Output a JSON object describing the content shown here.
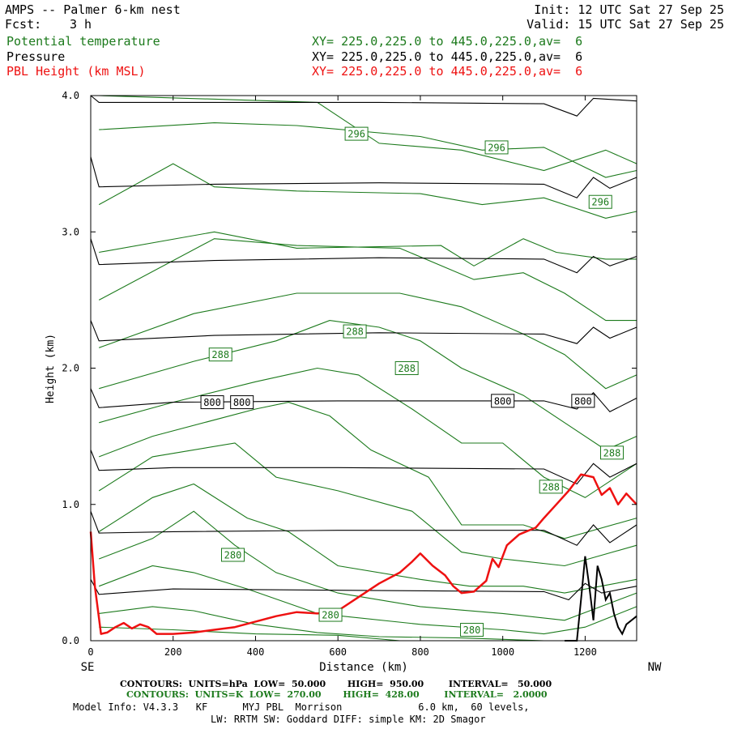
{
  "header": {
    "title": "AMPS -- Palmer 6-km nest",
    "fcst_label": "Fcst:",
    "fcst_value": "3 h",
    "init": "Init: 12 UTC Sat 27 Sep 25",
    "valid": "Valid: 15 UTC Sat 27 Sep 25"
  },
  "legend": [
    {
      "name": "Potential temperature",
      "xy": "XY= 225.0,225.0 to 445.0,225.0,av=  6",
      "color": "#1c7a1c"
    },
    {
      "name": "Pressure",
      "xy": "XY= 225.0,225.0 to 445.0,225.0,av=  6",
      "color": "#000000"
    },
    {
      "name": "PBL Height (km MSL)",
      "xy": "XY= 225.0,225.0 to 445.0,225.0,av=  6",
      "color": "#ee1111"
    }
  ],
  "footer": {
    "pressure_contours": "CONTOURS:  UNITS=hPa  LOW=  50.000       HIGH=  950.00        INTERVAL=   50.000",
    "theta_contours": "CONTOURS:  UNITS=K  LOW=  270.00       HIGH=  428.00        INTERVAL=   2.0000",
    "model_info": "Model Info: V4.3.3   KF      MYJ PBL  Morrison             6.0 km,  60 levels,",
    "model_info2": "LW: RRTM SW: Goddard DIFF: simple KM: 2D Smagor"
  },
  "chart_data": {
    "type": "line",
    "title": "AMPS -- Palmer 6-km nest",
    "xlabel": "Distance (km)",
    "ylabel": "Height (km)",
    "xlim": [
      0,
      1325
    ],
    "ylim": [
      0,
      4.0
    ],
    "x_ticks": [
      0,
      200,
      400,
      600,
      800,
      1000,
      1200
    ],
    "x_tick_labels": [
      "0",
      "200",
      "400",
      "600",
      "800",
      "1000",
      "1200"
    ],
    "y_ticks": [
      0,
      1,
      2,
      3,
      4
    ],
    "y_tick_labels": [
      "0.0",
      "1.0",
      "2.0",
      "3.0",
      "4.0"
    ],
    "x_end_labels": {
      "left": "SE",
      "right": "NW"
    },
    "pressure_isobars_hPa": [
      {
        "level": 950,
        "points": [
          [
            0,
            0.45
          ],
          [
            20,
            0.34
          ],
          [
            200,
            0.38
          ],
          [
            600,
            0.37
          ],
          [
            1100,
            0.36
          ],
          [
            1160,
            0.3
          ],
          [
            1200,
            0.42
          ],
          [
            1240,
            0.35
          ],
          [
            1325,
            0.4
          ]
        ]
      },
      {
        "level": 900,
        "points": [
          [
            0,
            0.95
          ],
          [
            20,
            0.79
          ],
          [
            200,
            0.8
          ],
          [
            600,
            0.81
          ],
          [
            1100,
            0.81
          ],
          [
            1180,
            0.7
          ],
          [
            1220,
            0.85
          ],
          [
            1260,
            0.72
          ],
          [
            1325,
            0.85
          ]
        ]
      },
      {
        "level": 850,
        "points": [
          [
            0,
            1.4
          ],
          [
            20,
            1.25
          ],
          [
            200,
            1.27
          ],
          [
            600,
            1.27
          ],
          [
            1100,
            1.26
          ],
          [
            1180,
            1.15
          ],
          [
            1220,
            1.3
          ],
          [
            1260,
            1.2
          ],
          [
            1325,
            1.3
          ]
        ]
      },
      {
        "level": 800,
        "points": [
          [
            0,
            1.85
          ],
          [
            20,
            1.71
          ],
          [
            200,
            1.75
          ],
          [
            600,
            1.76
          ],
          [
            1100,
            1.76
          ],
          [
            1180,
            1.7
          ],
          [
            1220,
            1.82
          ],
          [
            1260,
            1.68
          ],
          [
            1325,
            1.78
          ]
        ]
      },
      {
        "level": 750,
        "points": [
          [
            0,
            2.35
          ],
          [
            20,
            2.2
          ],
          [
            300,
            2.24
          ],
          [
            700,
            2.26
          ],
          [
            1100,
            2.25
          ],
          [
            1180,
            2.18
          ],
          [
            1220,
            2.3
          ],
          [
            1260,
            2.22
          ],
          [
            1325,
            2.3
          ]
        ]
      },
      {
        "level": 700,
        "points": [
          [
            0,
            2.95
          ],
          [
            20,
            2.76
          ],
          [
            300,
            2.79
          ],
          [
            700,
            2.81
          ],
          [
            1100,
            2.8
          ],
          [
            1180,
            2.7
          ],
          [
            1220,
            2.82
          ],
          [
            1260,
            2.75
          ],
          [
            1325,
            2.82
          ]
        ]
      },
      {
        "level": 650,
        "points": [
          [
            0,
            3.55
          ],
          [
            20,
            3.33
          ],
          [
            300,
            3.35
          ],
          [
            700,
            3.36
          ],
          [
            1100,
            3.35
          ],
          [
            1180,
            3.25
          ],
          [
            1220,
            3.4
          ],
          [
            1260,
            3.32
          ],
          [
            1325,
            3.4
          ]
        ]
      },
      {
        "level": 600,
        "points": [
          [
            0,
            4.0
          ],
          [
            20,
            3.95
          ],
          [
            300,
            3.95
          ],
          [
            700,
            3.95
          ],
          [
            1100,
            3.94
          ],
          [
            1180,
            3.85
          ],
          [
            1220,
            3.98
          ],
          [
            1325,
            3.96
          ]
        ]
      }
    ],
    "pressure_labels": [
      {
        "text": "800",
        "x": 295,
        "y": 1.75
      },
      {
        "text": "800",
        "x": 367,
        "y": 1.75
      },
      {
        "text": "800",
        "x": 1000,
        "y": 1.76
      },
      {
        "text": "800",
        "x": 1195,
        "y": 1.76
      }
    ],
    "theta_isentropes_K": [
      {
        "points": [
          [
            20,
            0.1
          ],
          [
            200,
            0.08
          ],
          [
            400,
            0.05
          ],
          [
            600,
            0.04
          ],
          [
            750,
            0.0
          ]
        ]
      },
      {
        "points": [
          [
            20,
            0.2
          ],
          [
            150,
            0.25
          ],
          [
            250,
            0.22
          ],
          [
            400,
            0.12
          ],
          [
            550,
            0.06
          ],
          [
            700,
            0.03
          ],
          [
            900,
            0.02
          ],
          [
            1100,
            0.0
          ]
        ]
      },
      {
        "points": [
          [
            20,
            0.4
          ],
          [
            150,
            0.55
          ],
          [
            250,
            0.5
          ],
          [
            380,
            0.38
          ],
          [
            550,
            0.2
          ],
          [
            800,
            0.12
          ],
          [
            1000,
            0.08
          ],
          [
            1100,
            0.05
          ],
          [
            1200,
            0.1
          ],
          [
            1325,
            0.25
          ]
        ]
      },
      {
        "points": [
          [
            20,
            0.6
          ],
          [
            150,
            0.75
          ],
          [
            250,
            0.95
          ],
          [
            350,
            0.7
          ],
          [
            450,
            0.5
          ],
          [
            600,
            0.35
          ],
          [
            800,
            0.25
          ],
          [
            1000,
            0.2
          ],
          [
            1150,
            0.15
          ],
          [
            1325,
            0.35
          ]
        ]
      },
      {
        "points": [
          [
            20,
            0.8
          ],
          [
            150,
            1.05
          ],
          [
            250,
            1.15
          ],
          [
            380,
            0.9
          ],
          [
            480,
            0.8
          ],
          [
            600,
            0.55
          ],
          [
            800,
            0.45
          ],
          [
            920,
            0.4
          ],
          [
            1050,
            0.4
          ],
          [
            1150,
            0.35
          ],
          [
            1325,
            0.45
          ]
        ]
      },
      {
        "points": [
          [
            20,
            1.1
          ],
          [
            150,
            1.35
          ],
          [
            350,
            1.45
          ],
          [
            450,
            1.2
          ],
          [
            600,
            1.1
          ],
          [
            780,
            0.95
          ],
          [
            900,
            0.65
          ],
          [
            1000,
            0.6
          ],
          [
            1150,
            0.55
          ],
          [
            1325,
            0.7
          ]
        ]
      },
      {
        "points": [
          [
            20,
            1.35
          ],
          [
            150,
            1.5
          ],
          [
            400,
            1.7
          ],
          [
            480,
            1.75
          ],
          [
            580,
            1.65
          ],
          [
            680,
            1.4
          ],
          [
            820,
            1.2
          ],
          [
            900,
            0.85
          ],
          [
            1050,
            0.85
          ],
          [
            1150,
            0.75
          ],
          [
            1325,
            0.9
          ]
        ]
      },
      {
        "points": [
          [
            20,
            1.6
          ],
          [
            200,
            1.75
          ],
          [
            400,
            1.9
          ],
          [
            550,
            2.0
          ],
          [
            650,
            1.95
          ],
          [
            780,
            1.7
          ],
          [
            900,
            1.45
          ],
          [
            1000,
            1.45
          ],
          [
            1100,
            1.2
          ],
          [
            1200,
            1.05
          ],
          [
            1325,
            1.3
          ]
        ]
      },
      {
        "points": [
          [
            20,
            1.85
          ],
          [
            250,
            2.05
          ],
          [
            450,
            2.2
          ],
          [
            580,
            2.35
          ],
          [
            700,
            2.3
          ],
          [
            800,
            2.2
          ],
          [
            900,
            2.0
          ],
          [
            1050,
            1.8
          ],
          [
            1150,
            1.6
          ],
          [
            1250,
            1.4
          ],
          [
            1325,
            1.5
          ]
        ]
      },
      {
        "points": [
          [
            20,
            2.15
          ],
          [
            250,
            2.4
          ],
          [
            500,
            2.55
          ],
          [
            750,
            2.55
          ],
          [
            900,
            2.45
          ],
          [
            1050,
            2.25
          ],
          [
            1150,
            2.1
          ],
          [
            1250,
            1.85
          ],
          [
            1325,
            1.95
          ]
        ]
      },
      {
        "points": [
          [
            20,
            2.5
          ],
          [
            300,
            2.95
          ],
          [
            500,
            2.9
          ],
          [
            750,
            2.88
          ],
          [
            930,
            2.65
          ],
          [
            1050,
            2.7
          ],
          [
            1150,
            2.55
          ],
          [
            1250,
            2.35
          ],
          [
            1325,
            2.35
          ]
        ]
      },
      {
        "points": [
          [
            20,
            2.85
          ],
          [
            300,
            3.0
          ],
          [
            500,
            2.88
          ],
          [
            850,
            2.9
          ],
          [
            930,
            2.75
          ],
          [
            1050,
            2.95
          ],
          [
            1130,
            2.85
          ],
          [
            1250,
            2.8
          ],
          [
            1325,
            2.8
          ]
        ]
      },
      {
        "points": [
          [
            20,
            3.2
          ],
          [
            200,
            3.5
          ],
          [
            300,
            3.33
          ],
          [
            500,
            3.3
          ],
          [
            800,
            3.28
          ],
          [
            950,
            3.2
          ],
          [
            1100,
            3.25
          ],
          [
            1250,
            3.1
          ],
          [
            1325,
            3.15
          ]
        ]
      },
      {
        "points": [
          [
            20,
            3.75
          ],
          [
            300,
            3.8
          ],
          [
            500,
            3.78
          ],
          [
            800,
            3.7
          ],
          [
            950,
            3.6
          ],
          [
            1100,
            3.62
          ],
          [
            1250,
            3.4
          ],
          [
            1325,
            3.45
          ]
        ]
      },
      {
        "points": [
          [
            20,
            4.0
          ],
          [
            550,
            3.95
          ],
          [
            700,
            3.65
          ],
          [
            900,
            3.6
          ],
          [
            1100,
            3.45
          ],
          [
            1250,
            3.6
          ],
          [
            1325,
            3.5
          ]
        ]
      }
    ],
    "theta_labels": [
      {
        "text": "296",
        "x": 645,
        "y": 3.72
      },
      {
        "text": "296",
        "x": 985,
        "y": 3.62
      },
      {
        "text": "296",
        "x": 1237,
        "y": 3.22
      },
      {
        "text": "288",
        "x": 315,
        "y": 2.1
      },
      {
        "text": "288",
        "x": 641,
        "y": 2.27
      },
      {
        "text": "288",
        "x": 767,
        "y": 2.0
      },
      {
        "text": "288",
        "x": 1265,
        "y": 1.38
      },
      {
        "text": "288",
        "x": 1117,
        "y": 1.13
      },
      {
        "text": "280",
        "x": 345,
        "y": 0.63
      },
      {
        "text": "280",
        "x": 582,
        "y": 0.19
      },
      {
        "text": "280",
        "x": 925,
        "y": 0.08
      }
    ],
    "pbl_height_km": {
      "x": [
        0,
        10,
        25,
        40,
        60,
        80,
        100,
        120,
        140,
        160,
        200,
        250,
        300,
        350,
        400,
        450,
        500,
        550,
        600,
        650,
        700,
        750,
        780,
        800,
        830,
        860,
        880,
        900,
        930,
        960,
        975,
        990,
        1010,
        1040,
        1080,
        1100,
        1130,
        1160,
        1190,
        1220,
        1240,
        1260,
        1280,
        1300,
        1325
      ],
      "y": [
        0.8,
        0.4,
        0.05,
        0.06,
        0.1,
        0.13,
        0.09,
        0.12,
        0.1,
        0.05,
        0.05,
        0.06,
        0.08,
        0.1,
        0.14,
        0.18,
        0.21,
        0.2,
        0.22,
        0.32,
        0.42,
        0.5,
        0.58,
        0.64,
        0.55,
        0.48,
        0.4,
        0.35,
        0.36,
        0.44,
        0.6,
        0.54,
        0.7,
        0.78,
        0.83,
        0.9,
        1.0,
        1.1,
        1.22,
        1.2,
        1.07,
        1.12,
        1.0,
        1.08,
        1.0
      ]
    },
    "terrain_km": {
      "x": [
        1150,
        1180,
        1190,
        1200,
        1210,
        1220,
        1230,
        1240,
        1250,
        1260,
        1270,
        1280,
        1290,
        1300,
        1325
      ],
      "y": [
        0.0,
        0.0,
        0.3,
        0.62,
        0.4,
        0.15,
        0.55,
        0.45,
        0.3,
        0.35,
        0.2,
        0.1,
        0.05,
        0.12,
        0.18
      ]
    },
    "series": [
      {
        "name": "Potential temperature",
        "color": "#1c7a1c"
      },
      {
        "name": "Pressure",
        "color": "#000000"
      },
      {
        "name": "PBL Height (km MSL)",
        "color": "#ee1111"
      }
    ]
  }
}
